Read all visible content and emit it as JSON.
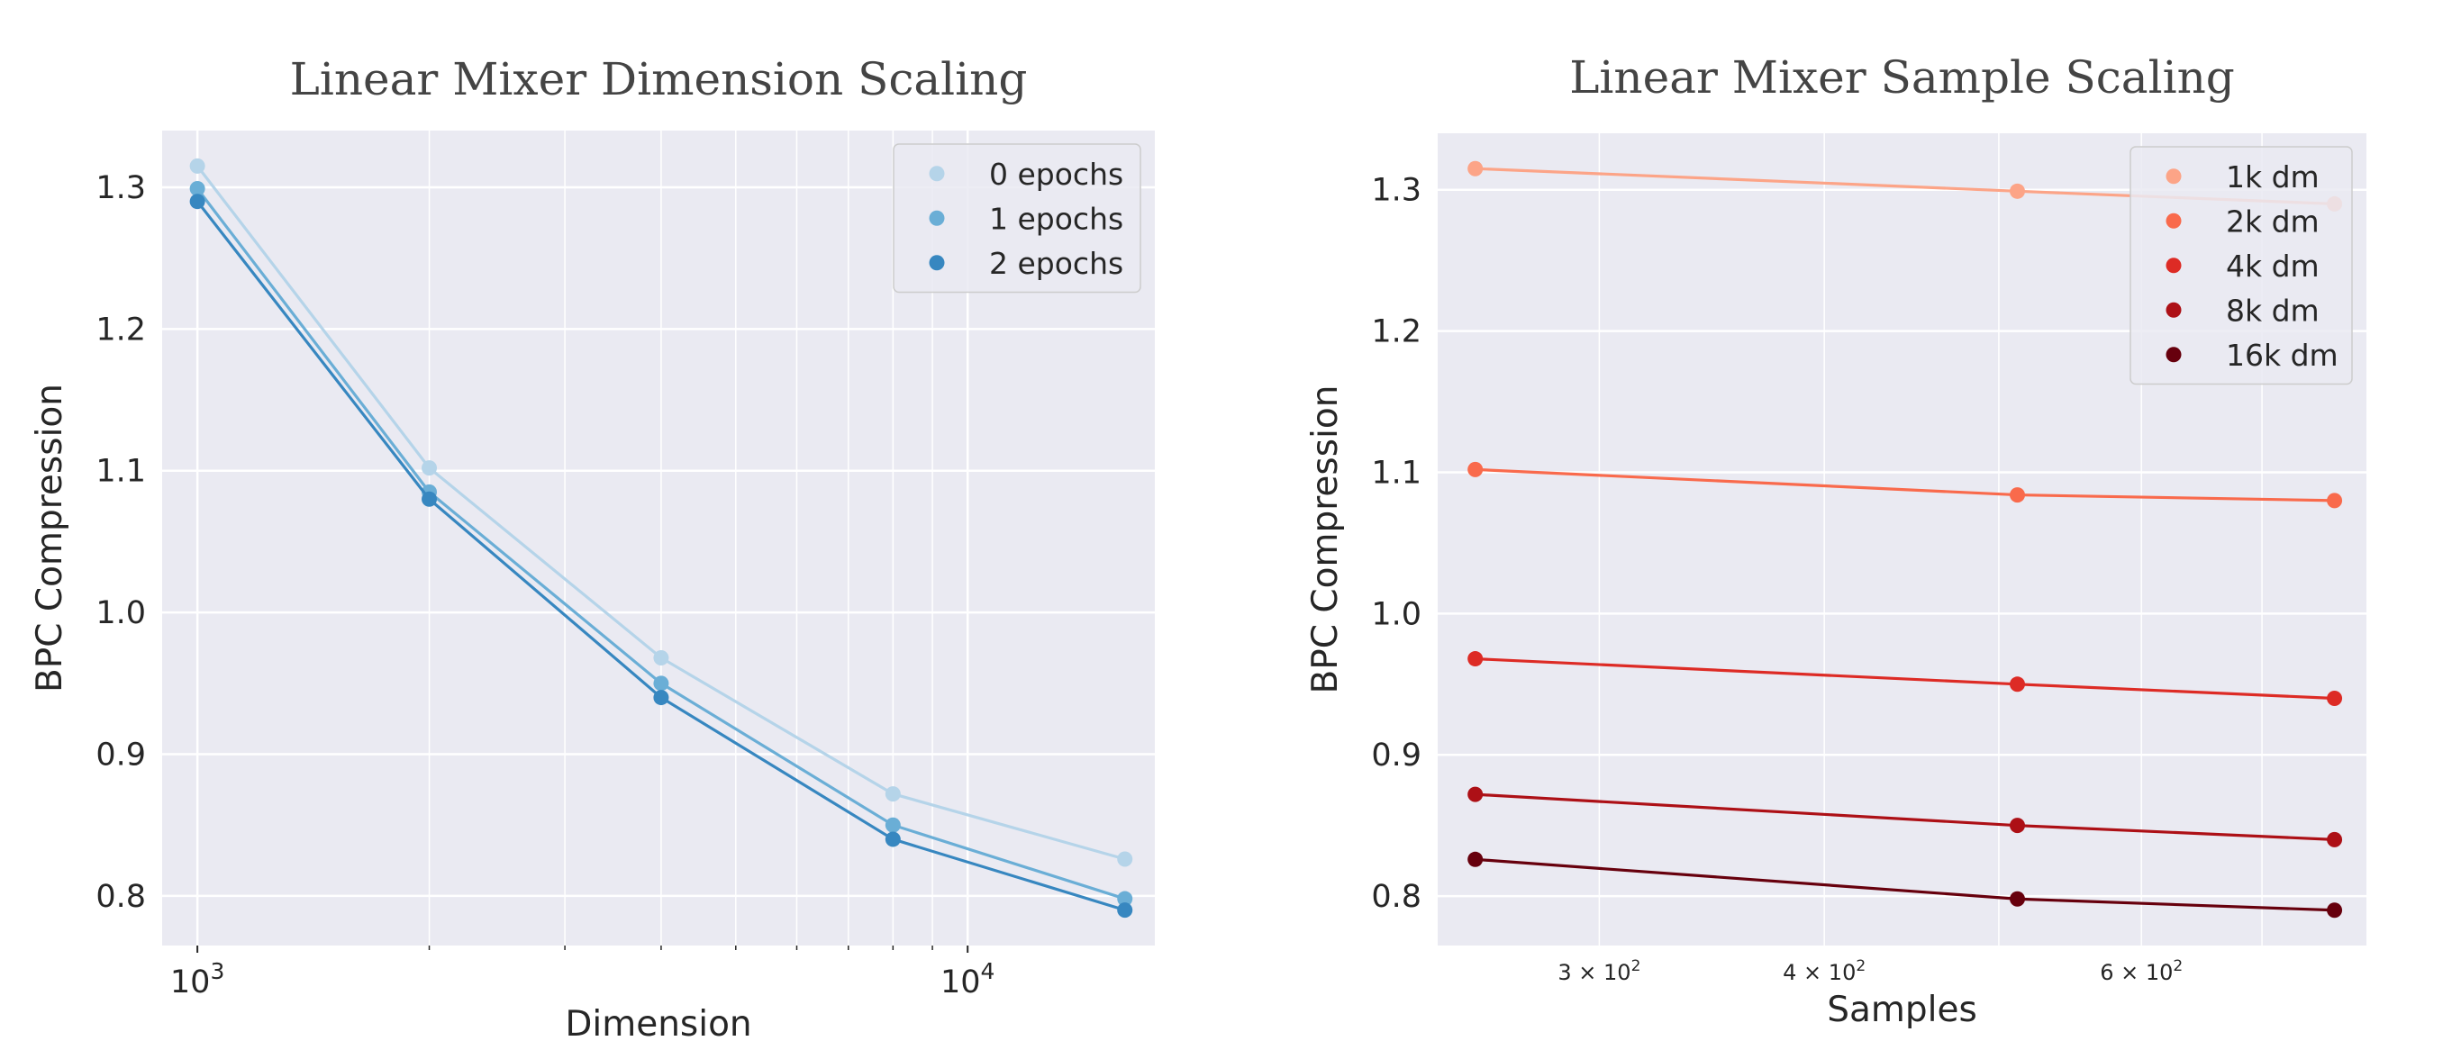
{
  "chart_data": [
    {
      "type": "line",
      "title": "Linear Mixer Dimension Scaling",
      "xlabel": "Dimension",
      "ylabel": "BPC Compression",
      "xscale": "log",
      "xlim": [
        900,
        17500
      ],
      "ylim": [
        0.765,
        1.34
      ],
      "x": [
        1000,
        2000,
        4000,
        8000,
        16000
      ],
      "yticks": [
        0.8,
        0.9,
        1.0,
        1.1,
        1.2,
        1.3
      ],
      "ytick_labels": [
        "0.8",
        "0.9",
        "1.0",
        "1.1",
        "1.2",
        "1.3"
      ],
      "xticks_major": [
        {
          "value": 1000,
          "base": "10",
          "exp": "3"
        },
        {
          "value": 10000,
          "base": "10",
          "exp": "4"
        }
      ],
      "grid": true,
      "legend_position": "top-right",
      "series": [
        {
          "name": "0 epochs",
          "color": "#b5d4e9",
          "values": [
            1.315,
            1.102,
            0.968,
            0.872,
            0.826
          ]
        },
        {
          "name": "1 epochs",
          "color": "#6aaed6",
          "values": [
            1.299,
            1.085,
            0.95,
            0.85,
            0.798
          ]
        },
        {
          "name": "2 epochs",
          "color": "#3787c0",
          "values": [
            1.29,
            1.08,
            0.94,
            0.84,
            0.79
          ]
        }
      ]
    },
    {
      "type": "line",
      "title": "Linear Mixer Sample Scaling",
      "xlabel": "Samples",
      "ylabel": "BPC Compression",
      "xscale": "log",
      "xlim": [
        244,
        800
      ],
      "ylim": [
        0.765,
        1.34
      ],
      "x": [
        256,
        512,
        768
      ],
      "yticks": [
        0.8,
        0.9,
        1.0,
        1.1,
        1.2,
        1.3
      ],
      "ytick_labels": [
        "0.8",
        "0.9",
        "1.0",
        "1.1",
        "1.2",
        "1.3"
      ],
      "xticks_minor": [
        {
          "value": 300,
          "base": "3 × 10",
          "exp": "2"
        },
        {
          "value": 400,
          "base": "4 × 10",
          "exp": "2"
        },
        {
          "value": 600,
          "base": "6 × 10",
          "exp": "2"
        }
      ],
      "grid": true,
      "legend_position": "top-right",
      "series": [
        {
          "name": "1k dm",
          "color": "#fca487",
          "values": [
            1.315,
            1.299,
            1.29
          ]
        },
        {
          "name": "2k dm",
          "color": "#f96a4c",
          "values": [
            1.102,
            1.084,
            1.08
          ]
        },
        {
          "name": "4k dm",
          "color": "#dd2b25",
          "values": [
            0.968,
            0.95,
            0.94
          ]
        },
        {
          "name": "8k dm",
          "color": "#ad1016",
          "values": [
            0.872,
            0.85,
            0.84
          ]
        },
        {
          "name": "16k dm",
          "color": "#67000d",
          "values": [
            0.826,
            0.798,
            0.79
          ]
        }
      ]
    }
  ]
}
